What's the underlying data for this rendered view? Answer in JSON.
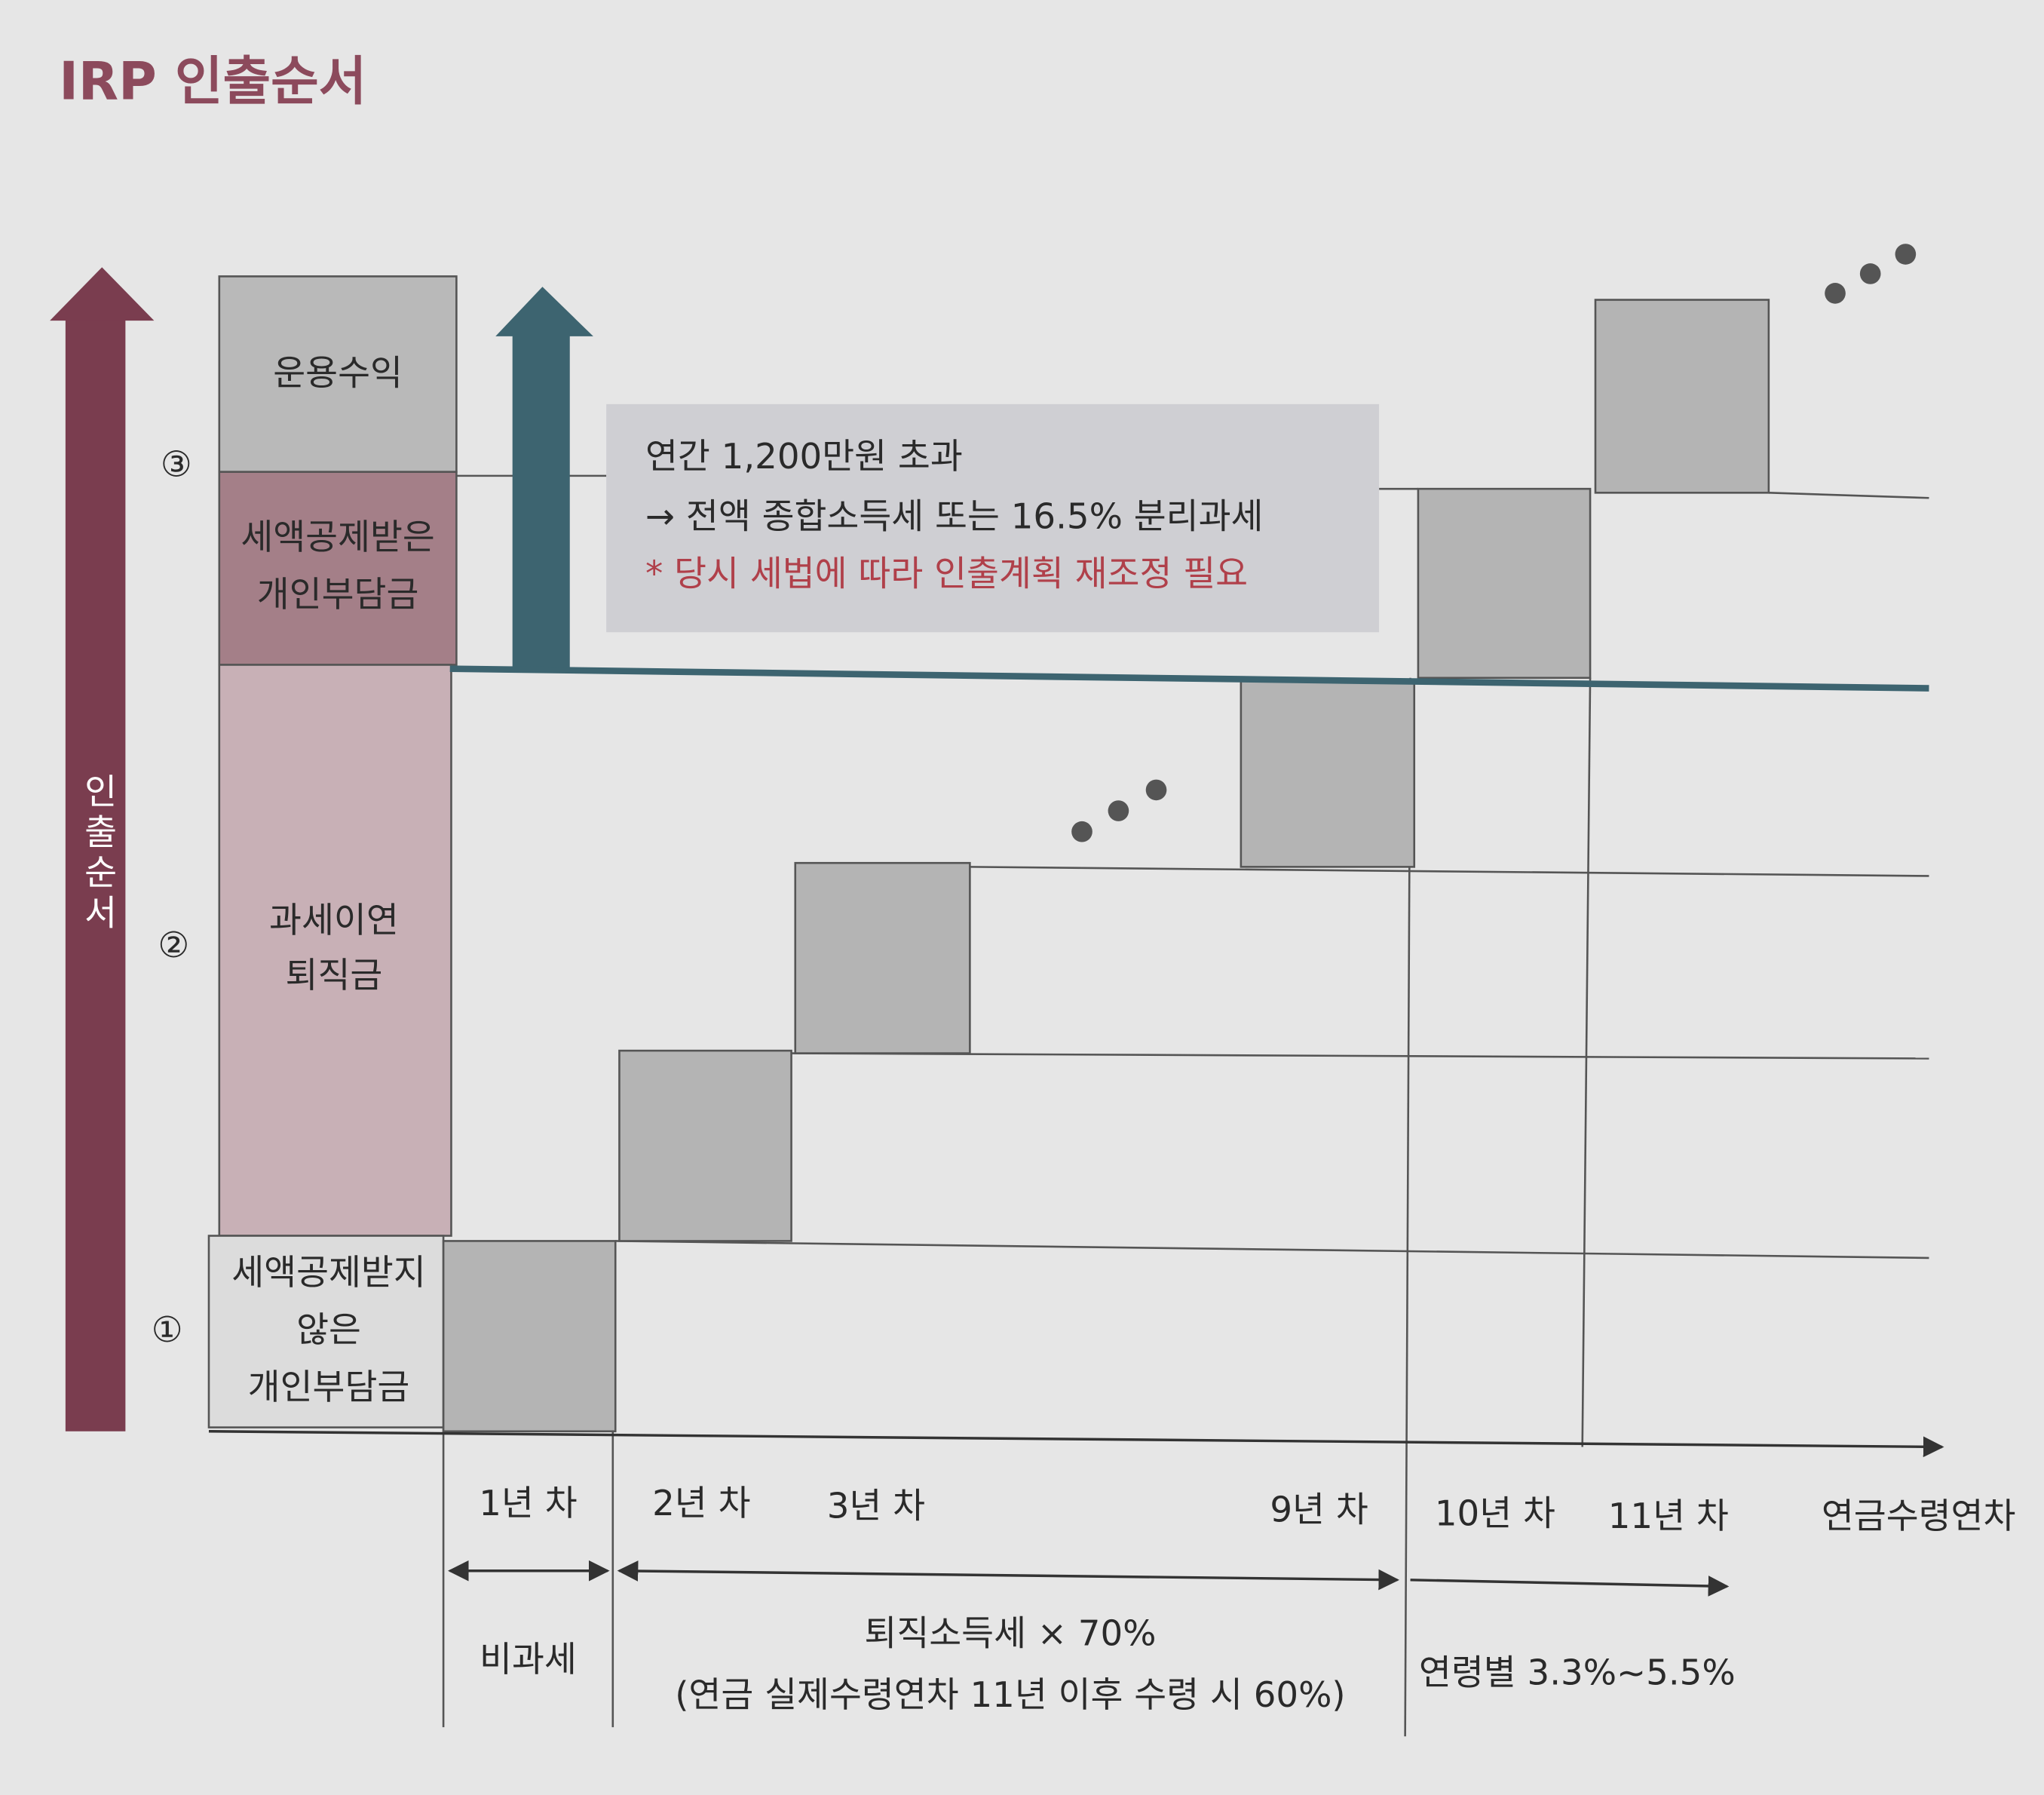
{
  "title": "IRP 인출순서",
  "order_arrow": "인출순서",
  "markers": [
    "①",
    "②",
    "③"
  ],
  "stack": [
    {
      "lines": [
        "운용수익"
      ]
    },
    {
      "lines": [
        "세액공제받은",
        "개인부담금"
      ]
    },
    {
      "lines": [
        "과세이연",
        "퇴직금"
      ]
    },
    {
      "lines": [
        "세액공제받지",
        "않은",
        "개인부담금"
      ]
    }
  ],
  "note": [
    "연간 1,200만원 초과",
    "→ 전액 종합소득세 또는 16.5% 분리과세",
    "* 당시 세법에 따라 인출계획 재조정 필요"
  ],
  "years": [
    "1년 차",
    "2년 차",
    "3년 차",
    "9년 차",
    "10년 차",
    "11년 차",
    "연금수령연차"
  ],
  "tax": [
    {
      "lines": [
        "비과세"
      ]
    },
    {
      "lines": [
        "퇴직소득세 × 70%",
        "(연금 실제수령연차 11년 이후 수령 시 60%)"
      ]
    },
    {
      "lines": [
        "연령별 3.3%~5.5%"
      ]
    }
  ]
}
